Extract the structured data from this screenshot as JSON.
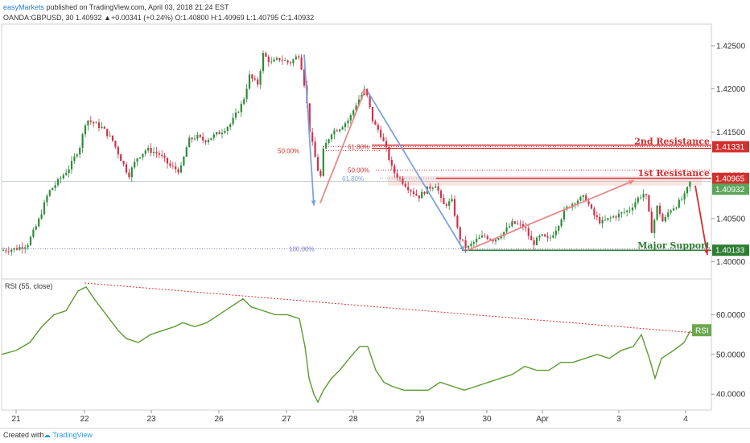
{
  "header": {
    "publisher": "easyMarkets",
    "published_text": "published on TradingView.com, April 03, 2018 21:24 EST",
    "symbol_line": "OANDA:GBPUSD, 30  1.40932  ▲+0.00341 (+0.24%)  O:1.40800  H:1.40969  L:1.40795  C:1.40932"
  },
  "footer": {
    "created_with": "Created with",
    "brand": "TradingView"
  },
  "colors": {
    "up": "#2e8b3a",
    "down": "#d0304a",
    "rsi": "#5c9a2e",
    "resistance": "#d32f2f",
    "support": "#2e7d32",
    "fib_blue": "#7ea2e0",
    "fib_red": "#e88888"
  },
  "chart_data": [
    {
      "type": "candlestick",
      "symbol": "OANDA:GBPUSD",
      "interval": "30",
      "ylim": [
        1.398,
        1.4275
      ],
      "price_ticks": [
        "1.42500",
        "1.42000",
        "1.41500",
        "1.41000",
        "1.40500",
        "1.40000"
      ],
      "x_ticks": [
        "21",
        "22",
        "23",
        "26",
        "27",
        "28",
        "29",
        "30",
        "Apr",
        "3",
        "4"
      ],
      "last_price_label": "1.40932",
      "path": [
        [
          0,
          1.4013
        ],
        [
          18,
          1.4015
        ],
        [
          32,
          1.402
        ],
        [
          45,
          1.4045
        ],
        [
          58,
          1.408
        ],
        [
          72,
          1.4095
        ],
        [
          85,
          1.411
        ],
        [
          98,
          1.4135
        ],
        [
          105,
          1.4165
        ],
        [
          115,
          1.416
        ],
        [
          125,
          1.4155
        ],
        [
          138,
          1.414
        ],
        [
          150,
          1.4115
        ],
        [
          158,
          1.41
        ],
        [
          168,
          1.412
        ],
        [
          180,
          1.413
        ],
        [
          195,
          1.4125
        ],
        [
          210,
          1.411
        ],
        [
          222,
          1.4105
        ],
        [
          232,
          1.414
        ],
        [
          242,
          1.4145
        ],
        [
          252,
          1.414
        ],
        [
          262,
          1.4145
        ],
        [
          272,
          1.415
        ],
        [
          285,
          1.416
        ],
        [
          300,
          1.4185
        ],
        [
          308,
          1.4215
        ],
        [
          318,
          1.4205
        ],
        [
          325,
          1.424
        ],
        [
          335,
          1.423
        ],
        [
          345,
          1.4235
        ],
        [
          358,
          1.423
        ],
        [
          370,
          1.424
        ],
        [
          378,
          1.4195
        ],
        [
          383,
          1.415
        ],
        [
          392,
          1.411
        ],
        [
          396,
          1.4095
        ],
        [
          400,
          1.413
        ],
        [
          410,
          1.415
        ],
        [
          420,
          1.4155
        ],
        [
          432,
          1.4165
        ],
        [
          442,
          1.4185
        ],
        [
          452,
          1.42
        ],
        [
          462,
          1.416
        ],
        [
          470,
          1.415
        ],
        [
          478,
          1.413
        ],
        [
          486,
          1.4105
        ],
        [
          496,
          1.4095
        ],
        [
          506,
          1.4085
        ],
        [
          518,
          1.4075
        ],
        [
          530,
          1.4085
        ],
        [
          540,
          1.409
        ],
        [
          548,
          1.4065
        ],
        [
          560,
          1.407
        ],
        [
          568,
          1.403
        ],
        [
          578,
          1.4015
        ],
        [
          590,
          1.4025
        ],
        [
          600,
          1.403
        ],
        [
          612,
          1.4025
        ],
        [
          625,
          1.4035
        ],
        [
          635,
          1.4045
        ],
        [
          650,
          1.404
        ],
        [
          660,
          1.402
        ],
        [
          670,
          1.403
        ],
        [
          680,
          1.4025
        ],
        [
          690,
          1.404
        ],
        [
          700,
          1.406
        ],
        [
          712,
          1.407
        ],
        [
          725,
          1.4075
        ],
        [
          735,
          1.4055
        ],
        [
          745,
          1.4045
        ],
        [
          755,
          1.405
        ],
        [
          768,
          1.4055
        ],
        [
          780,
          1.406
        ],
        [
          792,
          1.4075
        ],
        [
          800,
          1.408
        ],
        [
          808,
          1.4035
        ],
        [
          815,
          1.4065
        ],
        [
          822,
          1.4045
        ],
        [
          830,
          1.406
        ],
        [
          838,
          1.4065
        ],
        [
          848,
          1.4075
        ],
        [
          856,
          1.4093
        ]
      ],
      "levels": [
        {
          "name": "2nd Resistance",
          "value": 1.41331,
          "label": "1.41331"
        },
        {
          "name": "1st Resistance",
          "value": 1.40965,
          "label": "1.40965"
        },
        {
          "name": "Major Support",
          "value": 1.40133,
          "label": "1.40133"
        }
      ],
      "fib_labels": {
        "left_50": "50.00%",
        "left_618": "61.80%",
        "right_50": "50.00%",
        "right_618": "61.80%",
        "right_100": "100.00%"
      },
      "annotations": {
        "res2": "2nd Resistance",
        "res1": "1st Resistance",
        "support": "Major Support"
      }
    },
    {
      "type": "line",
      "title": "RSI (55, close)",
      "series_label": "RSI",
      "ylim": [
        36,
        69
      ],
      "ticks": [
        "60.0000",
        "50.0000",
        "40.0000"
      ],
      "x": [
        0,
        18,
        35,
        50,
        65,
        80,
        95,
        105,
        115,
        130,
        145,
        155,
        170,
        185,
        200,
        215,
        225,
        240,
        255,
        270,
        285,
        300,
        310,
        325,
        340,
        355,
        370,
        377,
        382,
        388,
        393,
        400,
        410,
        420,
        432,
        445,
        455,
        465,
        475,
        485,
        500,
        515,
        530,
        545,
        560,
        575,
        590,
        605,
        620,
        635,
        650,
        665,
        680,
        695,
        710,
        725,
        740,
        755,
        770,
        785,
        795,
        805,
        812,
        820,
        835,
        848,
        856
      ],
      "values": [
        50,
        51,
        53,
        57,
        60,
        61,
        66,
        67,
        64,
        60,
        56,
        54,
        53,
        55,
        56,
        57,
        58,
        57,
        58,
        60,
        62,
        64,
        62,
        61,
        60,
        60,
        59,
        52,
        44,
        40,
        38,
        41,
        44,
        46,
        49,
        52,
        52,
        46,
        43,
        42,
        41,
        41,
        41,
        43,
        42,
        41,
        42,
        43,
        44,
        45,
        47,
        46,
        46,
        48,
        48,
        49,
        50,
        49,
        51,
        52,
        55,
        49,
        44,
        49,
        51,
        53,
        56
      ],
      "last_label": "RSI"
    }
  ]
}
